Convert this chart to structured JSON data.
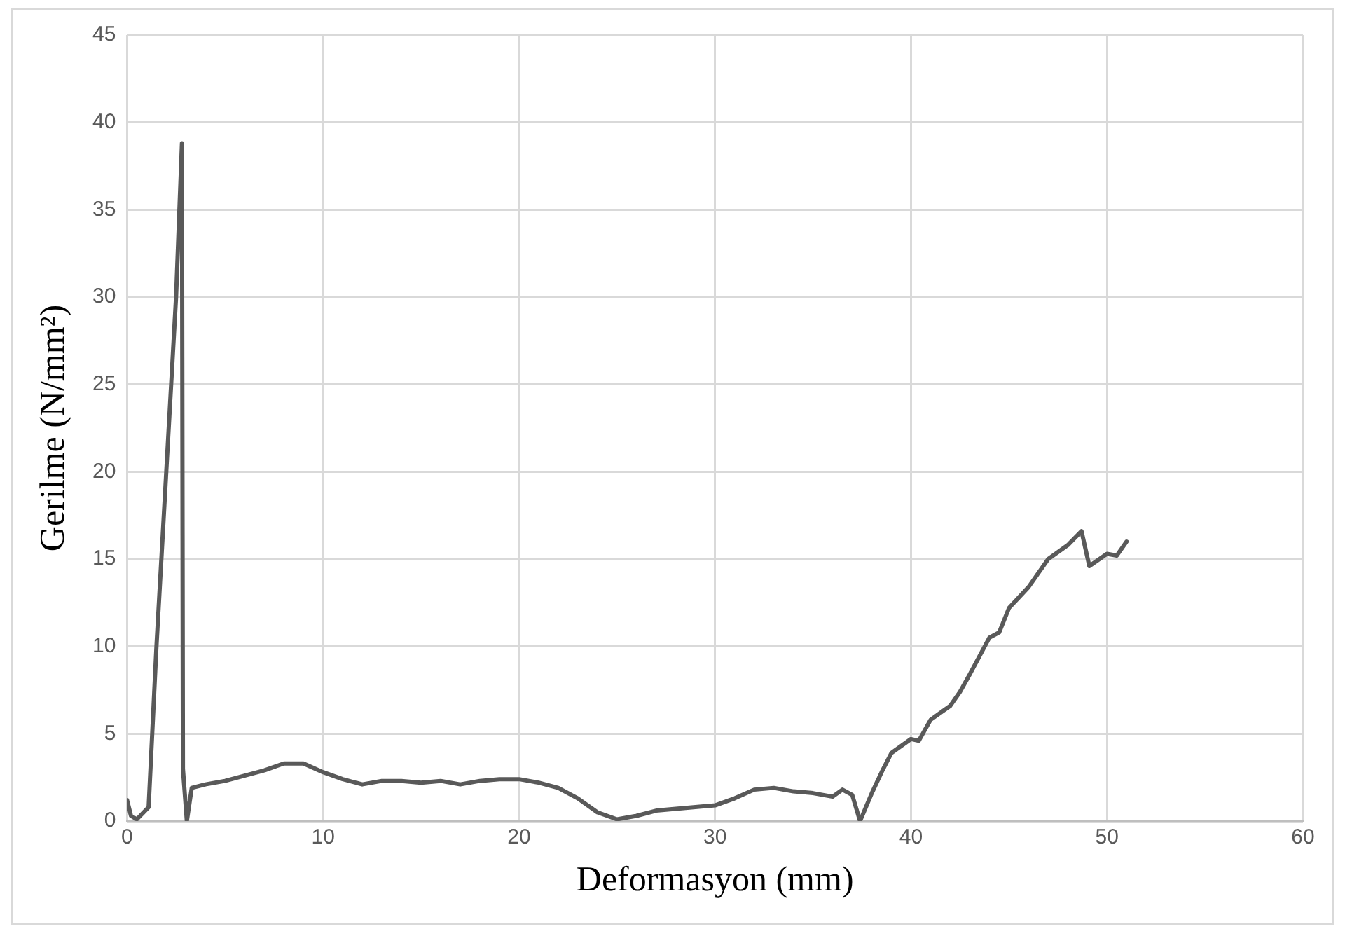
{
  "chart_data": {
    "type": "line",
    "xlabel": "Deformasyon (mm)",
    "ylabel": "Gerilme (N/mm²)",
    "xlim": [
      0,
      60
    ],
    "xticks": [
      0,
      10,
      20,
      30,
      40,
      50,
      60
    ],
    "ylim": [
      0,
      45
    ],
    "yticks": [
      0,
      5,
      10,
      15,
      20,
      25,
      30,
      35,
      40,
      45
    ],
    "grid": true,
    "legend": false,
    "marker": "none",
    "line_style": "solid",
    "series": [
      {
        "color": "#595959",
        "x": [
          0,
          0.2,
          0.5,
          1.1,
          1.5,
          2,
          2.5,
          2.8,
          2.85,
          3.05,
          3.3,
          4,
          5,
          6,
          7,
          8,
          9,
          10,
          11,
          12,
          13,
          14,
          15,
          16,
          17,
          18,
          19,
          20,
          21,
          22,
          23,
          24,
          25,
          26,
          27,
          28,
          29,
          30,
          31,
          32,
          33,
          34,
          35,
          36,
          36.5,
          37,
          37.4,
          38,
          38.5,
          39,
          40,
          40.4,
          41,
          42,
          42.5,
          43,
          44,
          44.5,
          45,
          45.5,
          46,
          47,
          48,
          48.7,
          49.1,
          50,
          50.5,
          51
        ],
        "values": [
          1.2,
          0.3,
          0.1,
          0.8,
          10,
          20,
          30,
          38.8,
          3,
          0,
          1.9,
          2.1,
          2.3,
          2.6,
          2.9,
          3.3,
          3.3,
          2.8,
          2.4,
          2.1,
          2.3,
          2.3,
          2.2,
          2.3,
          2.1,
          2.3,
          2.4,
          2.4,
          2.2,
          1.9,
          1.3,
          0.5,
          0.1,
          0.3,
          0.6,
          0.7,
          0.8,
          0.9,
          1.3,
          1.8,
          1.9,
          1.7,
          1.6,
          1.4,
          1.8,
          1.5,
          0,
          1.6,
          2.8,
          3.9,
          4.7,
          4.6,
          5.8,
          6.6,
          7.4,
          8.4,
          10.5,
          10.8,
          12.2,
          12.8,
          13.4,
          15,
          15.8,
          16.6,
          14.6,
          15.3,
          15.2,
          16
        ]
      }
    ]
  }
}
